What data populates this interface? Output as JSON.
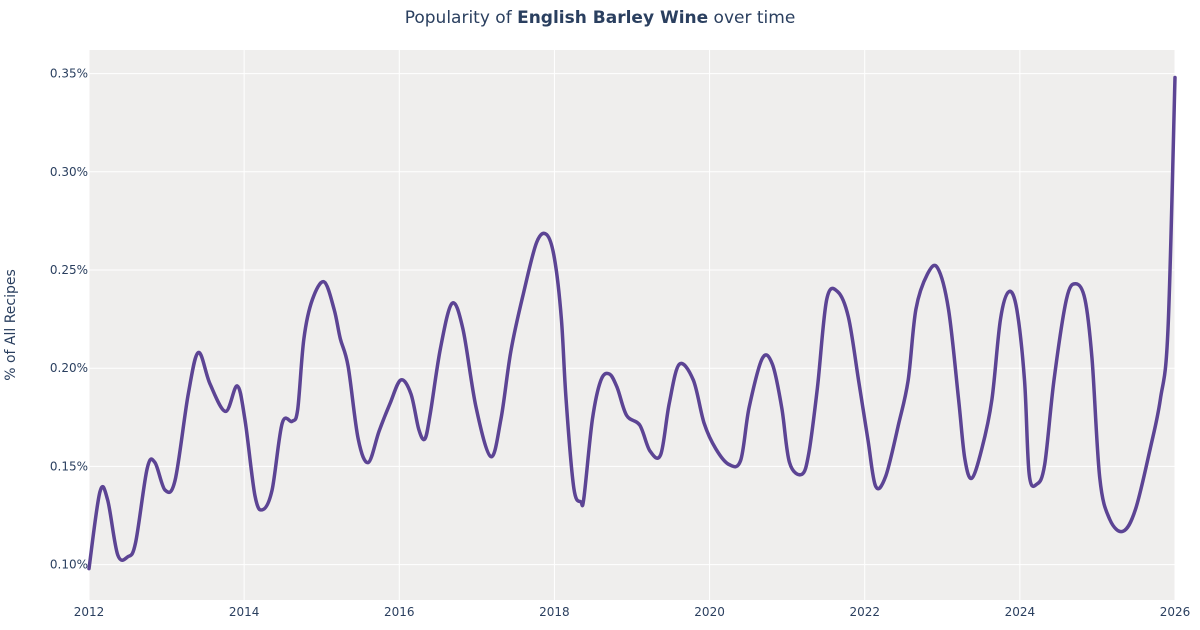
{
  "title": {
    "prefix": "Popularity of ",
    "bold": "English Barley Wine",
    "suffix": " over time"
  },
  "colors": {
    "line": "#5c4494",
    "plot_bg": "#efeeed",
    "grid": "#ffffff",
    "text": "#2a3f5f"
  },
  "chart_data": {
    "type": "line",
    "title": "Popularity of English Barley Wine over time",
    "xlabel": "",
    "ylabel": "% of All Recipes",
    "xlim": [
      2012,
      2026
    ],
    "ylim": [
      0.082,
      0.362
    ],
    "x_ticks": [
      "2012",
      "2014",
      "2016",
      "2018",
      "2020",
      "2022",
      "2024",
      "2026"
    ],
    "y_ticks": [
      "0.10%",
      "0.15%",
      "0.20%",
      "0.25%",
      "0.30%",
      "0.35%"
    ],
    "grid": true,
    "legend": null,
    "series": [
      {
        "name": "English Barley Wine",
        "x": [
          2012.0,
          2012.14,
          2012.24,
          2012.37,
          2012.5,
          2012.6,
          2012.75,
          2012.85,
          2012.98,
          2013.11,
          2013.28,
          2013.41,
          2013.56,
          2013.76,
          2013.91,
          2014.01,
          2014.14,
          2014.24,
          2014.36,
          2014.49,
          2014.62,
          2014.69,
          2014.77,
          2014.88,
          2015.03,
          2015.16,
          2015.24,
          2015.34,
          2015.47,
          2015.6,
          2015.74,
          2015.88,
          2016.02,
          2016.15,
          2016.25,
          2016.33,
          2016.4,
          2016.53,
          2016.68,
          2016.82,
          2016.99,
          2017.18,
          2017.31,
          2017.44,
          2017.6,
          2017.77,
          2017.9,
          2018.0,
          2018.09,
          2018.15,
          2018.25,
          2018.34,
          2018.38,
          2018.49,
          2018.6,
          2018.71,
          2018.81,
          2018.93,
          2019.1,
          2019.23,
          2019.37,
          2019.48,
          2019.61,
          2019.79,
          2019.93,
          2020.08,
          2020.25,
          2020.4,
          2020.51,
          2020.68,
          2020.81,
          2020.93,
          2021.03,
          2021.19,
          2021.28,
          2021.39,
          2021.51,
          2021.65,
          2021.79,
          2021.92,
          2022.04,
          2022.14,
          2022.27,
          2022.44,
          2022.56,
          2022.66,
          2022.81,
          2022.94,
          2023.08,
          2023.21,
          2023.29,
          2023.38,
          2023.51,
          2023.64,
          2023.75,
          2023.86,
          2023.96,
          2024.06,
          2024.12,
          2024.22,
          2024.32,
          2024.44,
          2024.6,
          2024.72,
          2024.84,
          2024.93,
          2025.03,
          2025.16,
          2025.33,
          2025.49,
          2025.68,
          2025.81,
          2025.91,
          2026.0
        ],
        "values": [
          0.098,
          0.137,
          0.133,
          0.105,
          0.104,
          0.111,
          0.149,
          0.152,
          0.138,
          0.143,
          0.187,
          0.208,
          0.192,
          0.178,
          0.191,
          0.174,
          0.135,
          0.128,
          0.138,
          0.172,
          0.173,
          0.179,
          0.215,
          0.235,
          0.244,
          0.23,
          0.215,
          0.201,
          0.164,
          0.152,
          0.168,
          0.182,
          0.194,
          0.187,
          0.169,
          0.164,
          0.177,
          0.21,
          0.233,
          0.22,
          0.18,
          0.155,
          0.174,
          0.209,
          0.238,
          0.264,
          0.268,
          0.256,
          0.225,
          0.184,
          0.139,
          0.132,
          0.134,
          0.174,
          0.194,
          0.197,
          0.19,
          0.176,
          0.171,
          0.158,
          0.156,
          0.182,
          0.202,
          0.194,
          0.172,
          0.159,
          0.151,
          0.153,
          0.18,
          0.205,
          0.202,
          0.18,
          0.152,
          0.146,
          0.157,
          0.19,
          0.235,
          0.239,
          0.226,
          0.194,
          0.164,
          0.14,
          0.145,
          0.172,
          0.194,
          0.23,
          0.248,
          0.251,
          0.23,
          0.184,
          0.154,
          0.144,
          0.159,
          0.184,
          0.225,
          0.239,
          0.23,
          0.194,
          0.146,
          0.141,
          0.151,
          0.194,
          0.235,
          0.243,
          0.235,
          0.205,
          0.144,
          0.123,
          0.117,
          0.128,
          0.159,
          0.184,
          0.22,
          0.348
        ]
      }
    ]
  }
}
